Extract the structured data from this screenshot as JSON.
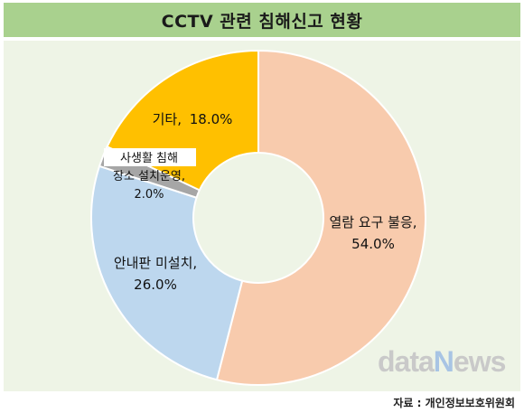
{
  "chart_data": {
    "type": "pie",
    "title": "CCTV 관련 침해신고 현황",
    "donut": true,
    "slices": [
      {
        "label": "열람 요구 불응,",
        "value": 54.0,
        "value_text": "54.0%",
        "color": "#f8cbad"
      },
      {
        "label": "안내판 미설치,",
        "value": 26.0,
        "value_text": "26.0%",
        "color": "#bdd7ee"
      },
      {
        "label_lines": [
          "사생활 침해",
          "장소 설치운영,"
        ],
        "value": 2.0,
        "value_text": "2.0%",
        "color": "#a6a6a6"
      },
      {
        "label": "기타,",
        "value": 18.0,
        "value_text": "18.0%",
        "color": "#ffc000"
      }
    ]
  },
  "brand": {
    "part1": "data",
    "part2": "N",
    "part3": "ews"
  },
  "source": "자료 : 개인정보보호위원회"
}
